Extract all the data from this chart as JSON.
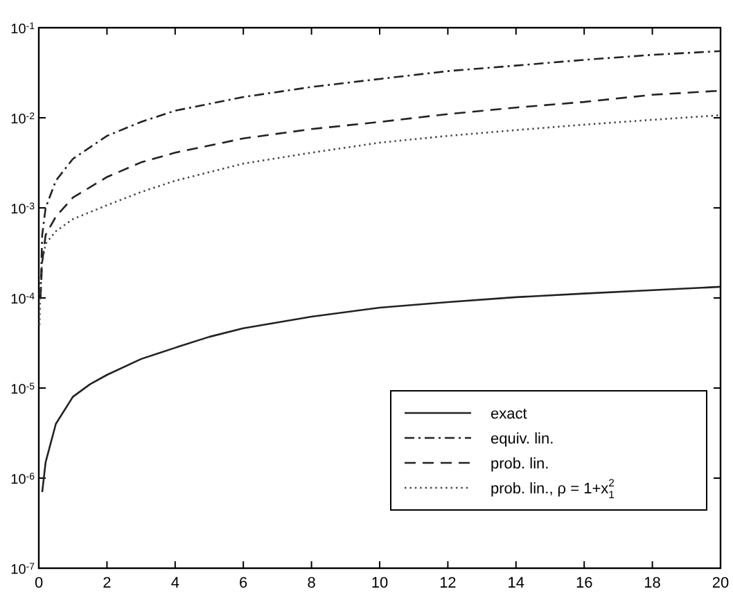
{
  "chart_data": {
    "type": "line",
    "log": "y",
    "legend": "bottom right",
    "grid": false,
    "marker": "none",
    "xlim": [
      0,
      20
    ],
    "xticks": [
      0,
      2,
      4,
      6,
      8,
      10,
      12,
      14,
      16,
      18,
      20
    ],
    "ylim": [
      1e-07,
      0.1
    ],
    "yticks": [
      {
        "value": 1e-07,
        "label": "10$^{-7}$"
      },
      {
        "value": 1e-06,
        "label": "10$^{-6}$"
      },
      {
        "value": 1e-05,
        "label": "10$^{-5}$"
      },
      {
        "value": 0.0001,
        "label": "10$^{-4}$"
      },
      {
        "value": 0.001,
        "label": "10$^{-3}$"
      },
      {
        "value": 0.01,
        "label": "10$^{-2}$"
      },
      {
        "value": 0.1,
        "label": "10$^{-1}$"
      }
    ],
    "series": [
      {
        "name": "exact",
        "color": "#222222",
        "line_style": "solid",
        "x": [
          0.1,
          0.2,
          0.5,
          1,
          1.5,
          2,
          3,
          4,
          5,
          6,
          8,
          10,
          12,
          14,
          16,
          18,
          20
        ],
        "values": [
          7e-07,
          1.5e-06,
          4e-06,
          8e-06,
          1.1e-05,
          1.4e-05,
          2.1e-05,
          2.8e-05,
          3.7e-05,
          4.6e-05,
          6.2e-05,
          7.8e-05,
          9e-05,
          0.000102,
          0.000112,
          0.000122,
          0.000133
        ]
      },
      {
        "name": "equiv. lin.",
        "color": "#222222",
        "line_style": "dashdot",
        "x": [
          0.05,
          0.1,
          0.2,
          0.5,
          1,
          2,
          3,
          4,
          6,
          8,
          10,
          12,
          14,
          16,
          18,
          20
        ],
        "values": [
          0.0001,
          0.0005,
          0.001,
          0.002,
          0.0035,
          0.0063,
          0.009,
          0.012,
          0.017,
          0.022,
          0.027,
          0.033,
          0.038,
          0.044,
          0.05,
          0.055
        ]
      },
      {
        "name": "prob. lin.",
        "color": "#222222",
        "line_style": "dashed",
        "x": [
          0.05,
          0.1,
          0.2,
          0.5,
          1,
          2,
          3,
          4,
          6,
          8,
          10,
          12,
          14,
          16,
          18,
          20
        ],
        "values": [
          0.0001,
          0.00025,
          0.0005,
          0.0008,
          0.0013,
          0.0022,
          0.0032,
          0.0041,
          0.0059,
          0.0075,
          0.009,
          0.011,
          0.013,
          0.015,
          0.018,
          0.02
        ]
      },
      {
        "name": "prob. lin., ρ = 1+x$_{1}$$^{2}$",
        "color": "#444444",
        "line_style": "dotted",
        "x": [
          0.02,
          0.05,
          0.1,
          0.2,
          0.5,
          1,
          2,
          3,
          4,
          6,
          8,
          10,
          12,
          14,
          16,
          18,
          20
        ],
        "values": [
          5e-05,
          0.00015,
          0.00025,
          0.0004,
          0.00055,
          0.00075,
          0.00107,
          0.0015,
          0.002,
          0.0031,
          0.0041,
          0.0053,
          0.0063,
          0.0073,
          0.0084,
          0.0095,
          0.0107
        ]
      }
    ]
  }
}
